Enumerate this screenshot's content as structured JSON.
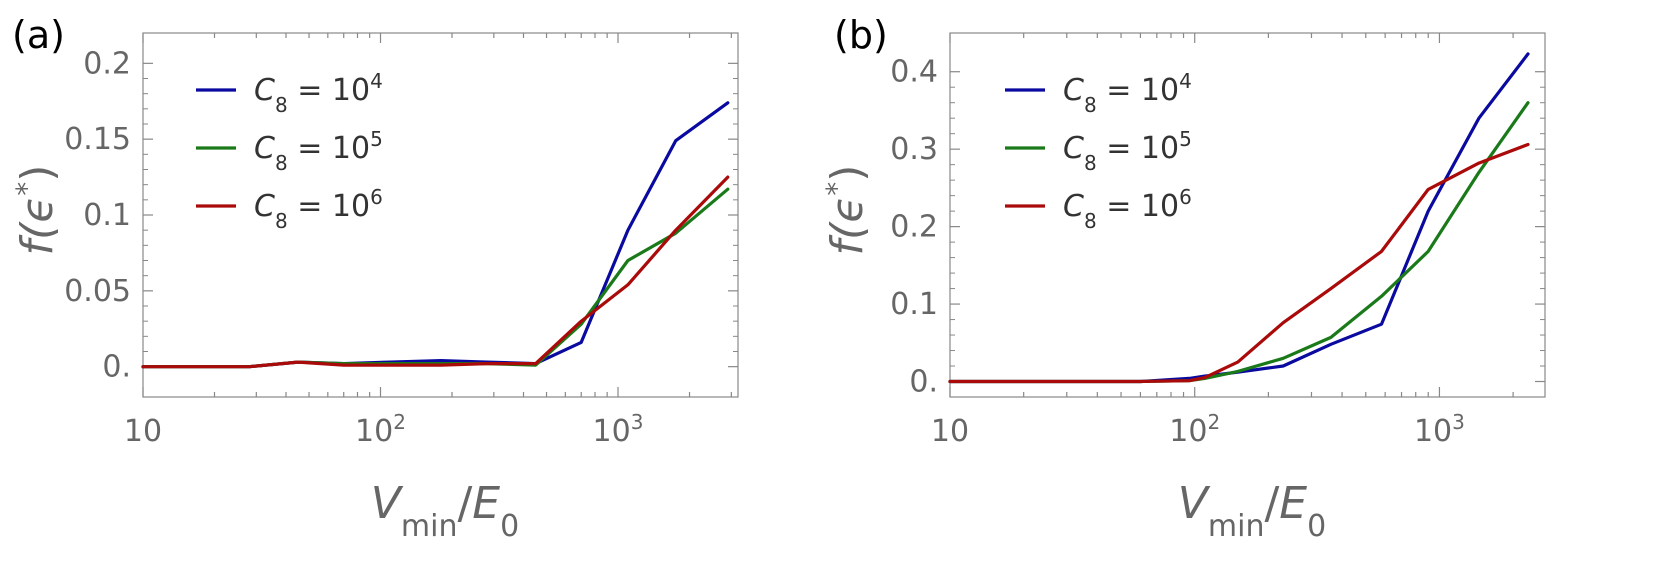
{
  "chart_data": [
    {
      "type": "line",
      "panel_label": "(a)",
      "xscale": "log",
      "xlim": [
        10,
        3200
      ],
      "ylim": [
        -0.02,
        0.22
      ],
      "xlabel": {
        "main": "V",
        "sub": "min",
        "sep": "/",
        "main2": "E",
        "sub2": "0"
      },
      "ylabel": {
        "text": "f(ϵ",
        "sup": "*",
        "close": ")"
      },
      "x_ticks": [
        {
          "value": 10,
          "base": "10",
          "exp": ""
        },
        {
          "value": 100,
          "base": "10",
          "exp": "2"
        },
        {
          "value": 1000,
          "base": "10",
          "exp": "3"
        }
      ],
      "y_ticks": [
        {
          "value": 0,
          "label": "0."
        },
        {
          "value": 0.05,
          "label": "0.05"
        },
        {
          "value": 0.1,
          "label": "0.1"
        },
        {
          "value": 0.15,
          "label": "0.15"
        },
        {
          "value": 0.2,
          "label": "0.2"
        }
      ],
      "legend_position": "top-left",
      "series": [
        {
          "name": "C8 = 10^4",
          "sym": "C",
          "sub": "8",
          "eq": " = ",
          "base": "10",
          "exp": "4",
          "color": "#0a0aa0",
          "x": [
            10,
            28,
            45,
            70,
            110,
            180,
            280,
            450,
            700,
            1100,
            1750,
            2900
          ],
          "y": [
            0,
            0,
            0.003,
            0.002,
            0.003,
            0.004,
            0.003,
            0.002,
            0.016,
            0.09,
            0.149,
            0.174
          ]
        },
        {
          "name": "C8 = 10^5",
          "sym": "C",
          "sub": "8",
          "eq": " = ",
          "base": "10",
          "exp": "5",
          "color": "#1a7a1a",
          "x": [
            10,
            28,
            45,
            70,
            110,
            180,
            280,
            450,
            700,
            1100,
            1750,
            2900
          ],
          "y": [
            0,
            0,
            0.003,
            0.002,
            0.002,
            0.002,
            0.002,
            0.001,
            0.028,
            0.07,
            0.088,
            0.117
          ]
        },
        {
          "name": "C8 = 10^6",
          "sym": "C",
          "sub": "8",
          "eq": " = ",
          "base": "10",
          "exp": "6",
          "color": "#aa0a0a",
          "x": [
            10,
            28,
            45,
            70,
            110,
            180,
            280,
            450,
            700,
            1100,
            1750,
            2900
          ],
          "y": [
            0,
            0,
            0.003,
            0.001,
            0.001,
            0.001,
            0.002,
            0.002,
            0.03,
            0.054,
            0.09,
            0.125
          ]
        }
      ]
    },
    {
      "type": "line",
      "panel_label": "(b)",
      "xscale": "log",
      "xlim": [
        10,
        2700
      ],
      "ylim": [
        -0.02,
        0.45
      ],
      "xlabel": {
        "main": "V",
        "sub": "min",
        "sep": "/",
        "main2": "E",
        "sub2": "0"
      },
      "ylabel": {
        "text": "f(ϵ",
        "sup": "*",
        "close": ")"
      },
      "x_ticks": [
        {
          "value": 10,
          "base": "10",
          "exp": ""
        },
        {
          "value": 100,
          "base": "10",
          "exp": "2"
        },
        {
          "value": 1000,
          "base": "10",
          "exp": "3"
        }
      ],
      "y_ticks": [
        {
          "value": 0,
          "label": "0."
        },
        {
          "value": 0.1,
          "label": "0.1"
        },
        {
          "value": 0.2,
          "label": "0.2"
        },
        {
          "value": 0.3,
          "label": "0.3"
        },
        {
          "value": 0.4,
          "label": "0.4"
        }
      ],
      "legend_position": "top-left",
      "series": [
        {
          "name": "C8 = 10^4",
          "sym": "C",
          "sub": "8",
          "eq": " = ",
          "base": "10",
          "exp": "4",
          "color": "#0a0aa0",
          "x": [
            10,
            60,
            95,
            110,
            150,
            230,
            360,
            580,
            900,
            1450,
            2300
          ],
          "y": [
            0,
            0,
            0.004,
            0.007,
            0.012,
            0.02,
            0.048,
            0.074,
            0.22,
            0.34,
            0.423
          ]
        },
        {
          "name": "C8 = 10^5",
          "sym": "C",
          "sub": "8",
          "eq": " = ",
          "base": "10",
          "exp": "5",
          "color": "#1a7a1a",
          "x": [
            10,
            60,
            95,
            110,
            150,
            230,
            360,
            580,
            900,
            1450,
            2300
          ],
          "y": [
            0,
            0,
            0.001,
            0.004,
            0.013,
            0.03,
            0.057,
            0.11,
            0.168,
            0.27,
            0.36
          ]
        },
        {
          "name": "C8 = 10^6",
          "sym": "C",
          "sub": "8",
          "eq": " = ",
          "base": "10",
          "exp": "6",
          "color": "#aa0a0a",
          "x": [
            10,
            60,
            95,
            110,
            150,
            230,
            360,
            580,
            900,
            1450,
            2300
          ],
          "y": [
            0,
            0,
            0.001,
            0.005,
            0.025,
            0.076,
            0.12,
            0.168,
            0.248,
            0.282,
            0.306
          ]
        }
      ]
    }
  ]
}
